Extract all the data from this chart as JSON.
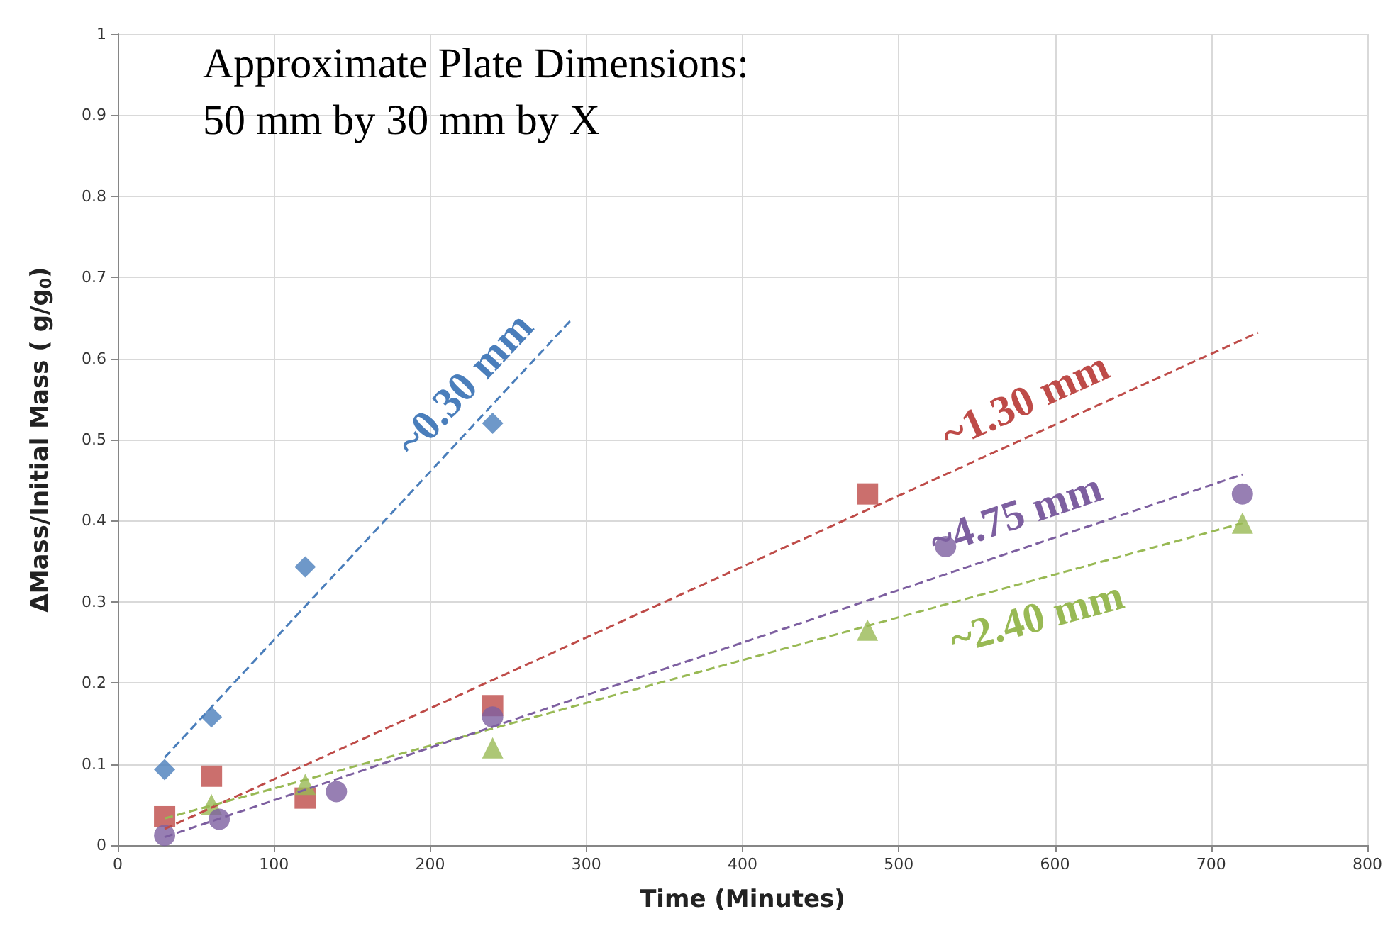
{
  "chart_data": {
    "type": "scatter",
    "title": "Approximate Plate Dimensions:\n50 mm by 30 mm by X",
    "xlabel": "Time (Minutes)",
    "ylabel": "ΔMass/Initial Mass ( g/g$_{0}$)",
    "xlim": [
      0,
      800
    ],
    "xticks": [
      0,
      100,
      200,
      300,
      400,
      500,
      600,
      700,
      800
    ],
    "ylim": [
      0,
      1
    ],
    "yticks": [
      0,
      0.1,
      0.2,
      0.3,
      0.4,
      0.5,
      0.6,
      0.7,
      0.8,
      0.9,
      1
    ],
    "grid": true,
    "legend": false,
    "series": [
      {
        "marker": "diamond",
        "color": "#4a7ebb",
        "x": [
          30,
          60,
          120,
          240
        ],
        "values": [
          0.093,
          0.158,
          0.343,
          0.52
        ]
      },
      {
        "marker": "square",
        "color": "#be4b48",
        "x": [
          30,
          60,
          120,
          240,
          480
        ],
        "values": [
          0.035,
          0.085,
          0.058,
          0.172,
          0.433
        ]
      },
      {
        "marker": "triangle",
        "color": "#98b954",
        "x": [
          60,
          120,
          240,
          480,
          720
        ],
        "values": [
          0.05,
          0.075,
          0.12,
          0.265,
          0.397
        ]
      },
      {
        "marker": "circle",
        "color": "#7d5fa0",
        "x": [
          30,
          65,
          140,
          240,
          530,
          720
        ],
        "values": [
          0.012,
          0.032,
          0.066,
          0.158,
          0.368,
          0.433
        ]
      },
      {
        "type": "line",
        "name": "~0.30 mm",
        "marker": "none",
        "line_style": "dashed",
        "color": "#4a7ebb",
        "x": [
          30,
          290
        ],
        "values": [
          0.108,
          0.647
        ]
      },
      {
        "type": "line",
        "name": "~1.30 mm",
        "marker": "none",
        "line_style": "dashed",
        "color": "#be4b48",
        "x": [
          30,
          730
        ],
        "values": [
          0.02,
          0.632
        ]
      },
      {
        "type": "line",
        "name": "~2.40 mm",
        "marker": "none",
        "line_style": "dashed",
        "color": "#98b954",
        "x": [
          30,
          720
        ],
        "values": [
          0.033,
          0.397
        ]
      },
      {
        "type": "line",
        "name": "~4.75 mm",
        "marker": "none",
        "line_style": "dashed",
        "color": "#7d5fa0",
        "x": [
          30,
          720
        ],
        "values": [
          0.01,
          0.457
        ]
      }
    ]
  }
}
